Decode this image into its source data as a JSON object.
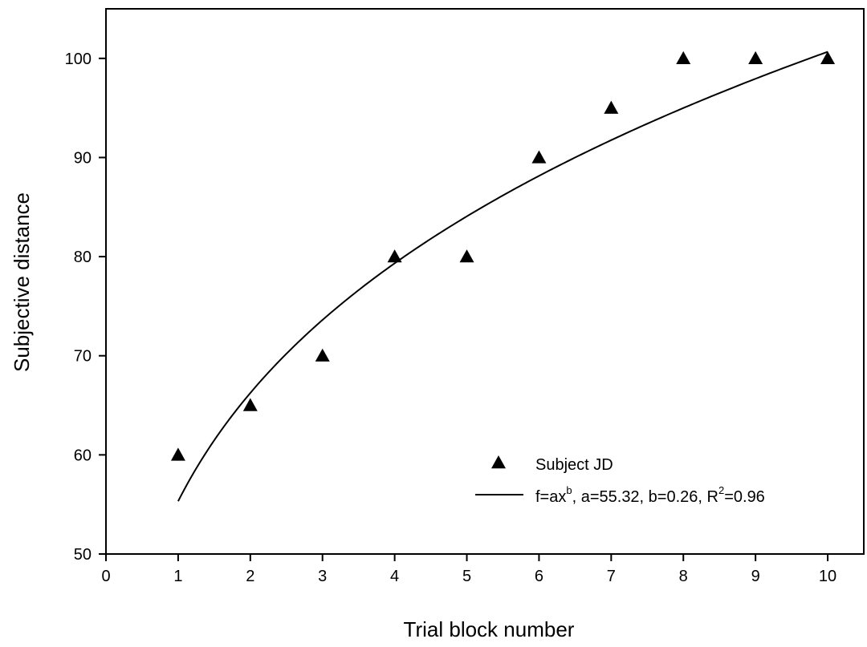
{
  "chart_data": {
    "type": "scatter",
    "xlabel": "Trial block number",
    "ylabel": "Subjective distance",
    "xlim": [
      0,
      10.5
    ],
    "ylim": [
      50,
      105
    ],
    "xticks": [
      0,
      1,
      2,
      3,
      4,
      5,
      6,
      7,
      8,
      9,
      10
    ],
    "yticks": [
      50,
      60,
      70,
      80,
      90,
      100
    ],
    "grid": false,
    "legend_position": "bottom-right",
    "series": [
      {
        "name": "Subject JD",
        "kind": "scatter",
        "marker": "triangle",
        "color": "#000000",
        "x": [
          1,
          2,
          3,
          4,
          5,
          6,
          7,
          8,
          9,
          10
        ],
        "y": [
          60,
          65,
          70,
          80,
          80,
          90,
          95,
          100,
          100,
          100
        ]
      },
      {
        "kind": "line",
        "color": "#000000",
        "fit": {
          "form": "power",
          "a": 55.32,
          "b": 0.26,
          "x_from": 1,
          "x_to": 10
        }
      }
    ],
    "legend": [
      {
        "marker": "triangle",
        "text": "Subject JD"
      },
      {
        "marker": "line",
        "parts": [
          {
            "t": "f=ax"
          },
          {
            "t": "b",
            "sup": true
          },
          {
            "t": ", a=55.32, b=0.26, R"
          },
          {
            "t": "2",
            "sup": true
          },
          {
            "t": "=0.96"
          }
        ]
      }
    ]
  }
}
